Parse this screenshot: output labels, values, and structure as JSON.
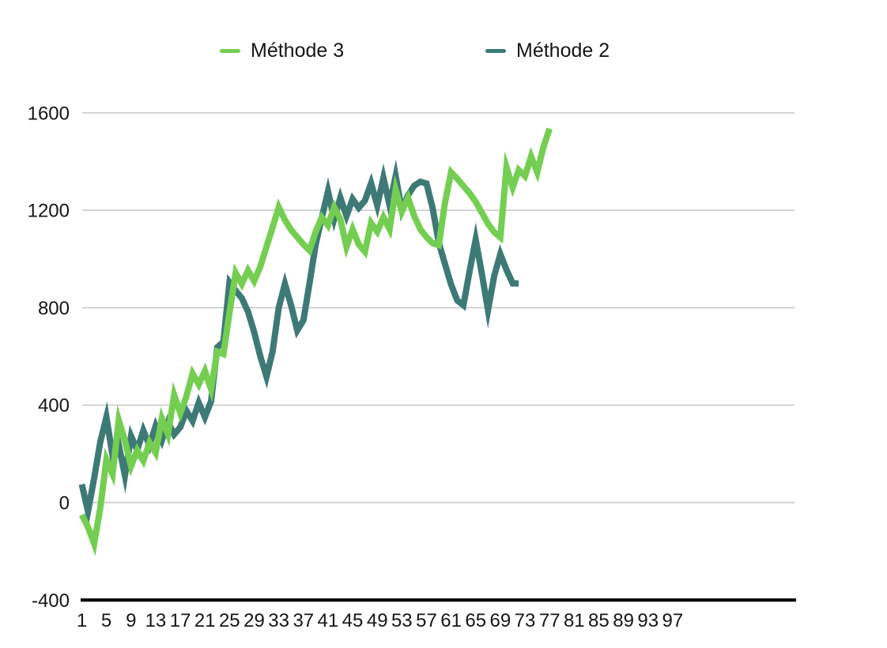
{
  "chart_data": {
    "type": "line",
    "title": "",
    "xlabel": "",
    "ylabel": "",
    "legend_position": "top",
    "grid": true,
    "background_color": "#ffffff",
    "gridline_color": "#c3c3c3",
    "axis_line_color": "#000000",
    "label_color": "#161616",
    "ylim": [
      -400,
      1600
    ],
    "y_ticks": [
      0,
      400,
      800,
      1200,
      1600
    ],
    "y_axis_bottom_tick": -400,
    "x_tick_labels": [
      1,
      5,
      9,
      13,
      17,
      21,
      25,
      29,
      33,
      37,
      41,
      45,
      49,
      53,
      57,
      61,
      65,
      69,
      73,
      77,
      81,
      85,
      89,
      93,
      97
    ],
    "x_axis_max_label": 97,
    "series": [
      {
        "name": "Méthode 3",
        "color": "#74ce51",
        "x_start": 1,
        "x_step": 1,
        "values": [
          -50,
          -100,
          -169,
          -20,
          176,
          117,
          338,
          254,
          150,
          215,
          172,
          247,
          205,
          345,
          280,
          442,
          367,
          436,
          530,
          485,
          540,
          465,
          620,
          610,
          780,
          943,
          898,
          953,
          910,
          969,
          1050,
          1130,
          1213,
          1160,
          1120,
          1090,
          1060,
          1035,
          1112,
          1171,
          1138,
          1213,
          1164,
          1050,
          1122,
          1060,
          1030,
          1148,
          1112,
          1171,
          1122,
          1285,
          1194,
          1252,
          1177,
          1122,
          1090,
          1065,
          1057,
          1230,
          1356,
          1330,
          1300,
          1270,
          1235,
          1190,
          1145,
          1110,
          1089,
          1376,
          1294,
          1365,
          1340,
          1421,
          1356,
          1460,
          1535
        ]
      },
      {
        "name": "Méthode 2",
        "color": "#3d7a76",
        "x_start": 1,
        "x_step": 1,
        "values": [
          75,
          -36,
          100,
          250,
          351,
          192,
          237,
          111,
          273,
          215,
          296,
          235,
          315,
          255,
          330,
          280,
          310,
          377,
          335,
          410,
          351,
          416,
          637,
          660,
          904,
          870,
          839,
          784,
          700,
          600,
          517,
          620,
          800,
          898,
          810,
          707,
          748,
          900,
          1060,
          1170,
          1278,
          1164,
          1252,
          1177,
          1246,
          1210,
          1240,
          1311,
          1220,
          1333,
          1220,
          1340,
          1200,
          1262,
          1301,
          1317,
          1310,
          1210,
          1067,
          980,
          895,
          830,
          810,
          950,
          1080,
          940,
          790,
          930,
          1020,
          955,
          900,
          900
        ]
      }
    ]
  }
}
